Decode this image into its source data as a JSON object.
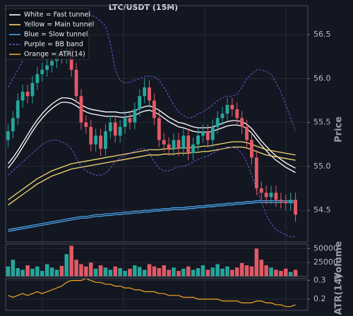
{
  "chart_data": [
    {
      "type": "candlestick",
      "title": "LTC/USDT (15M)",
      "ylabel": "Price",
      "ylim": [
        54.14,
        56.83
      ],
      "yticks": [
        54.5,
        {
          "value": 55,
          "label": "55.0"
        },
        55.5,
        {
          "value": 56,
          "label": "56.0"
        },
        56.5
      ],
      "grid": true,
      "legend": "upper left",
      "up_color": "#26a69a",
      "down_color": "#e05a66",
      "open": [
        55.3,
        55.4,
        55.55,
        55.75,
        55.85,
        55.8,
        55.95,
        56.05,
        56.1,
        56.15,
        56.2,
        56.3,
        56.25,
        56.35,
        56.1,
        55.8,
        55.5,
        55.45,
        55.25,
        55.35,
        55.2,
        55.4,
        55.5,
        55.35,
        55.45,
        55.55,
        55.5,
        55.65,
        55.8,
        55.9,
        55.75,
        55.55,
        55.3,
        55.25,
        55.2,
        55.3,
        55.2,
        55.35,
        55.15,
        55.25,
        55.35,
        55.4,
        55.3,
        55.45,
        55.55,
        55.6,
        55.7,
        55.65,
        55.55,
        55.45,
        55.3,
        55.1,
        54.75,
        54.7,
        54.65,
        54.7,
        54.62,
        54.6,
        54.58,
        54.62
      ],
      "high": [
        55.48,
        55.63,
        55.83,
        55.93,
        55.93,
        56.03,
        56.13,
        56.18,
        56.23,
        56.28,
        56.38,
        56.38,
        56.55,
        56.43,
        56.18,
        55.88,
        55.58,
        55.53,
        55.43,
        55.43,
        55.48,
        55.58,
        55.58,
        55.53,
        55.63,
        55.63,
        55.73,
        55.88,
        56.0,
        55.98,
        55.83,
        55.63,
        55.38,
        55.33,
        55.38,
        55.38,
        55.43,
        55.43,
        55.33,
        55.43,
        55.48,
        55.48,
        55.53,
        55.63,
        55.68,
        55.78,
        55.78,
        55.73,
        55.63,
        55.53,
        55.38,
        55.18,
        54.83,
        54.78,
        54.78,
        54.78,
        54.7,
        54.68,
        54.7,
        54.7
      ],
      "low": [
        55.22,
        55.32,
        55.47,
        55.67,
        55.72,
        55.72,
        55.87,
        55.97,
        56.02,
        56.07,
        56.12,
        56.17,
        56.17,
        56.02,
        55.72,
        55.42,
        55.37,
        55.17,
        55.17,
        55.12,
        55.12,
        55.32,
        55.27,
        55.27,
        55.37,
        55.42,
        55.42,
        55.57,
        55.72,
        55.67,
        55.47,
        55.22,
        55.17,
        55.12,
        55.12,
        55.12,
        55.12,
        55.07,
        55.07,
        55.17,
        55.27,
        55.22,
        55.22,
        55.37,
        55.47,
        55.52,
        55.57,
        55.47,
        55.37,
        55.22,
        55.02,
        54.67,
        54.62,
        54.57,
        54.57,
        54.54,
        54.52,
        54.5,
        54.5,
        54.37
      ],
      "close": [
        55.4,
        55.55,
        55.75,
        55.85,
        55.8,
        55.95,
        56.05,
        56.1,
        56.15,
        56.2,
        56.3,
        56.25,
        56.35,
        56.1,
        55.8,
        55.5,
        55.45,
        55.25,
        55.35,
        55.2,
        55.4,
        55.5,
        55.35,
        55.45,
        55.55,
        55.5,
        55.65,
        55.8,
        55.9,
        55.75,
        55.55,
        55.3,
        55.25,
        55.2,
        55.3,
        55.2,
        55.35,
        55.15,
        55.25,
        55.35,
        55.4,
        55.3,
        55.45,
        55.55,
        55.6,
        55.7,
        55.65,
        55.55,
        55.45,
        55.3,
        55.1,
        54.75,
        54.7,
        54.65,
        54.7,
        54.62,
        54.6,
        54.58,
        54.62,
        54.45
      ],
      "series": [
        {
          "name": "White = Fast tunnel",
          "color": "#ffffff",
          "dashed": false,
          "upper": [
            55.03,
            55.1,
            55.18,
            55.27,
            55.36,
            55.45,
            55.53,
            55.6,
            55.66,
            55.71,
            55.75,
            55.78,
            55.78,
            55.77,
            55.74,
            55.7,
            55.67,
            55.65,
            55.64,
            55.63,
            55.62,
            55.62,
            55.62,
            55.61,
            55.61,
            55.62,
            55.63,
            55.66,
            55.68,
            55.69,
            55.67,
            55.64,
            55.6,
            55.56,
            55.53,
            55.5,
            55.49,
            55.47,
            55.45,
            55.44,
            55.44,
            55.44,
            55.45,
            55.47,
            55.49,
            55.51,
            55.52,
            55.52,
            55.51,
            55.48,
            55.43,
            55.36,
            55.29,
            55.23,
            55.17,
            55.12,
            55.08,
            55.04,
            55.01,
            54.98
          ],
          "lower": [
            54.98,
            55.05,
            55.13,
            55.22,
            55.31,
            55.4,
            55.48,
            55.55,
            55.61,
            55.66,
            55.7,
            55.73,
            55.73,
            55.72,
            55.69,
            55.65,
            55.62,
            55.6,
            55.59,
            55.58,
            55.57,
            55.57,
            55.57,
            55.56,
            55.56,
            55.57,
            55.58,
            55.61,
            55.63,
            55.64,
            55.62,
            55.59,
            55.55,
            55.51,
            55.48,
            55.45,
            55.44,
            55.42,
            55.4,
            55.39,
            55.39,
            55.39,
            55.4,
            55.42,
            55.44,
            55.46,
            55.47,
            55.47,
            55.46,
            55.43,
            55.38,
            55.31,
            55.24,
            55.18,
            55.12,
            55.07,
            55.03,
            54.99,
            54.96,
            54.93
          ]
        },
        {
          "name": "Yellow = Main tunnel",
          "color": "#f5d76e",
          "dashed": false,
          "upper": [
            54.62,
            54.66,
            54.7,
            54.74,
            54.78,
            54.82,
            54.86,
            54.89,
            54.92,
            54.95,
            54.97,
            54.99,
            55.01,
            55.03,
            55.04,
            55.05,
            55.06,
            55.07,
            55.08,
            55.09,
            55.1,
            55.11,
            55.12,
            55.13,
            55.14,
            55.15,
            55.16,
            55.17,
            55.18,
            55.19,
            55.19,
            55.19,
            55.2,
            55.2,
            55.2,
            55.21,
            55.21,
            55.21,
            55.22,
            55.22,
            55.23,
            55.23,
            55.24,
            55.25,
            55.26,
            55.27,
            55.28,
            55.28,
            55.28,
            55.27,
            55.25,
            55.23,
            55.21,
            55.19,
            55.18,
            55.17,
            55.16,
            55.15,
            55.14,
            55.13
          ],
          "lower": [
            54.56,
            54.6,
            54.64,
            54.68,
            54.72,
            54.76,
            54.8,
            54.83,
            54.86,
            54.89,
            54.91,
            54.93,
            54.95,
            54.97,
            54.98,
            54.99,
            55.0,
            55.01,
            55.02,
            55.03,
            55.04,
            55.05,
            55.06,
            55.07,
            55.08,
            55.09,
            55.1,
            55.11,
            55.12,
            55.13,
            55.13,
            55.13,
            55.14,
            55.14,
            55.14,
            55.15,
            55.15,
            55.15,
            55.16,
            55.16,
            55.17,
            55.17,
            55.18,
            55.19,
            55.2,
            55.21,
            55.22,
            55.22,
            55.22,
            55.21,
            55.19,
            55.17,
            55.15,
            55.13,
            55.12,
            55.11,
            55.1,
            55.09,
            55.08,
            55.07
          ]
        },
        {
          "name": "Blue = Slow tunnel",
          "color": "#4aa3e8",
          "dashed": false,
          "upper": [
            54.28,
            54.29,
            54.3,
            54.31,
            54.32,
            54.33,
            54.34,
            54.35,
            54.36,
            54.37,
            54.38,
            54.39,
            54.4,
            54.41,
            54.42,
            54.43,
            54.43,
            54.44,
            54.45,
            54.45,
            54.46,
            54.46,
            54.47,
            54.47,
            54.48,
            54.48,
            54.49,
            54.49,
            54.5,
            54.5,
            54.51,
            54.51,
            54.52,
            54.52,
            54.53,
            54.53,
            54.53,
            54.54,
            54.54,
            54.55,
            54.55,
            54.56,
            54.56,
            54.57,
            54.57,
            54.58,
            54.58,
            54.59,
            54.59,
            54.6,
            54.6,
            54.61,
            54.61,
            54.61,
            54.61,
            54.61,
            54.61,
            54.61,
            54.61,
            54.61
          ],
          "lower": [
            54.26,
            54.27,
            54.28,
            54.29,
            54.3,
            54.31,
            54.32,
            54.33,
            54.34,
            54.35,
            54.36,
            54.37,
            54.38,
            54.39,
            54.4,
            54.41,
            54.41,
            54.42,
            54.43,
            54.43,
            54.44,
            54.44,
            54.45,
            54.45,
            54.46,
            54.46,
            54.47,
            54.47,
            54.48,
            54.48,
            54.49,
            54.49,
            54.5,
            54.5,
            54.51,
            54.51,
            54.51,
            54.52,
            54.52,
            54.53,
            54.53,
            54.54,
            54.54,
            54.55,
            54.55,
            54.56,
            54.56,
            54.57,
            54.57,
            54.58,
            54.58,
            54.59,
            54.59,
            54.59,
            54.59,
            54.59,
            54.59,
            54.59,
            54.59,
            54.59
          ]
        },
        {
          "name": "Purple = BB band",
          "color": "#7b5ce0",
          "dashed": true,
          "upper": [
            55.9,
            56.0,
            56.1,
            56.2,
            56.3,
            56.4,
            56.5,
            56.6,
            56.65,
            56.7,
            56.75,
            56.78,
            56.78,
            56.78,
            56.76,
            56.75,
            56.74,
            56.72,
            56.7,
            56.65,
            56.6,
            56.4,
            56.1,
            55.98,
            55.95,
            55.96,
            55.98,
            56.0,
            56.02,
            56.03,
            56.02,
            55.98,
            55.9,
            55.8,
            55.7,
            55.62,
            55.58,
            55.55,
            55.56,
            55.6,
            55.62,
            55.66,
            55.7,
            55.75,
            55.78,
            55.8,
            55.8,
            55.82,
            55.9,
            56.0,
            56.05,
            56.1,
            56.1,
            56.08,
            56.05,
            55.95,
            55.85,
            55.7,
            55.55,
            55.4
          ],
          "lower": [
            54.9,
            54.95,
            55.0,
            55.05,
            55.1,
            55.15,
            55.2,
            55.25,
            55.28,
            55.3,
            55.3,
            55.28,
            55.25,
            55.2,
            55.1,
            55.0,
            54.95,
            54.92,
            54.9,
            54.9,
            54.92,
            54.98,
            55.05,
            55.1,
            55.12,
            55.15,
            55.18,
            55.2,
            55.2,
            55.15,
            55.05,
            54.98,
            54.95,
            54.95,
            54.97,
            55.0,
            55.0,
            55.02,
            55.05,
            55.08,
            55.1,
            55.12,
            55.15,
            55.18,
            55.2,
            55.22,
            55.22,
            55.2,
            55.15,
            55.05,
            54.9,
            54.75,
            54.6,
            54.45,
            54.35,
            54.28,
            54.25,
            54.22,
            54.2,
            54.2
          ]
        }
      ]
    },
    {
      "type": "bar",
      "ylabel": "Volume",
      "ylim": [
        0,
        58000
      ],
      "yticks": [
        25000,
        50000
      ],
      "grid": true,
      "values": [
        18000,
        30000,
        15000,
        12000,
        20000,
        14000,
        18000,
        10000,
        22000,
        16000,
        12000,
        19000,
        40000,
        55000,
        30000,
        22000,
        18000,
        25000,
        14000,
        20000,
        16000,
        12000,
        18000,
        15000,
        10000,
        14000,
        20000,
        17000,
        12000,
        22000,
        18000,
        15000,
        20000,
        12000,
        16000,
        10000,
        14000,
        18000,
        12000,
        15000,
        20000,
        12000,
        16000,
        22000,
        14000,
        18000,
        12000,
        16000,
        24000,
        20000,
        18000,
        50000,
        30000,
        20000,
        16000,
        12000,
        10000,
        14000,
        8000,
        12000
      ]
    },
    {
      "type": "line",
      "ylabel": "ATR(14)",
      "ylim": [
        0.14,
        0.31
      ],
      "yticks": [
        0.2,
        0.3
      ],
      "grid": true,
      "series": [
        {
          "name": "Orange = ATR(14)",
          "color": "#f5a623",
          "values": [
            0.22,
            0.21,
            0.22,
            0.23,
            0.22,
            0.23,
            0.24,
            0.23,
            0.24,
            0.25,
            0.26,
            0.27,
            0.29,
            0.3,
            0.3,
            0.3,
            0.31,
            0.3,
            0.29,
            0.29,
            0.28,
            0.28,
            0.27,
            0.27,
            0.26,
            0.26,
            0.25,
            0.25,
            0.24,
            0.24,
            0.24,
            0.23,
            0.23,
            0.22,
            0.22,
            0.22,
            0.21,
            0.21,
            0.21,
            0.2,
            0.2,
            0.2,
            0.2,
            0.2,
            0.19,
            0.19,
            0.19,
            0.19,
            0.18,
            0.18,
            0.18,
            0.19,
            0.19,
            0.18,
            0.18,
            0.17,
            0.17,
            0.16,
            0.16,
            0.17
          ]
        }
      ]
    }
  ]
}
